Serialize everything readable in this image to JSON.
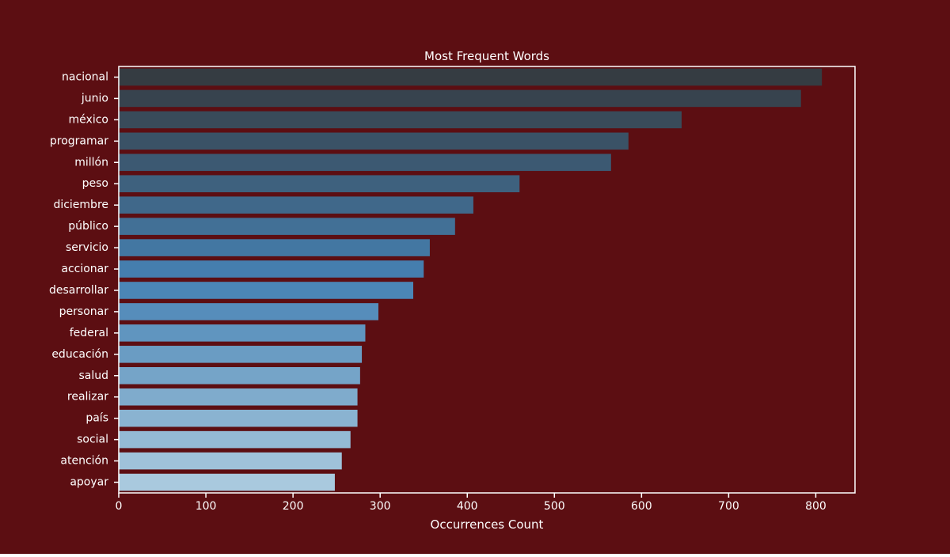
{
  "colors": {
    "background": "#5c0e12",
    "foreground": "#ffffff",
    "bar_gradient_start": "#353c42",
    "bar_gradient_end": "#a9c9de"
  },
  "chart_data": {
    "type": "bar",
    "orientation": "horizontal",
    "title": "Most Frequent Words",
    "xlabel": "Occurrences Count",
    "ylabel": "",
    "xlim": [
      0,
      845
    ],
    "xticks": [
      0,
      100,
      200,
      300,
      400,
      500,
      600,
      700,
      800
    ],
    "grid": false,
    "categories": [
      "nacional",
      "junio",
      "méxico",
      "programar",
      "millón",
      "peso",
      "diciembre",
      "público",
      "servicio",
      "accionar",
      "desarrollar",
      "personar",
      "federal",
      "educación",
      "salud",
      "realizar",
      "país",
      "social",
      "atención",
      "apoyar"
    ],
    "values": [
      807,
      783,
      646,
      585,
      565,
      460,
      407,
      386,
      357,
      350,
      338,
      298,
      283,
      279,
      277,
      274,
      274,
      266,
      256,
      248
    ]
  }
}
